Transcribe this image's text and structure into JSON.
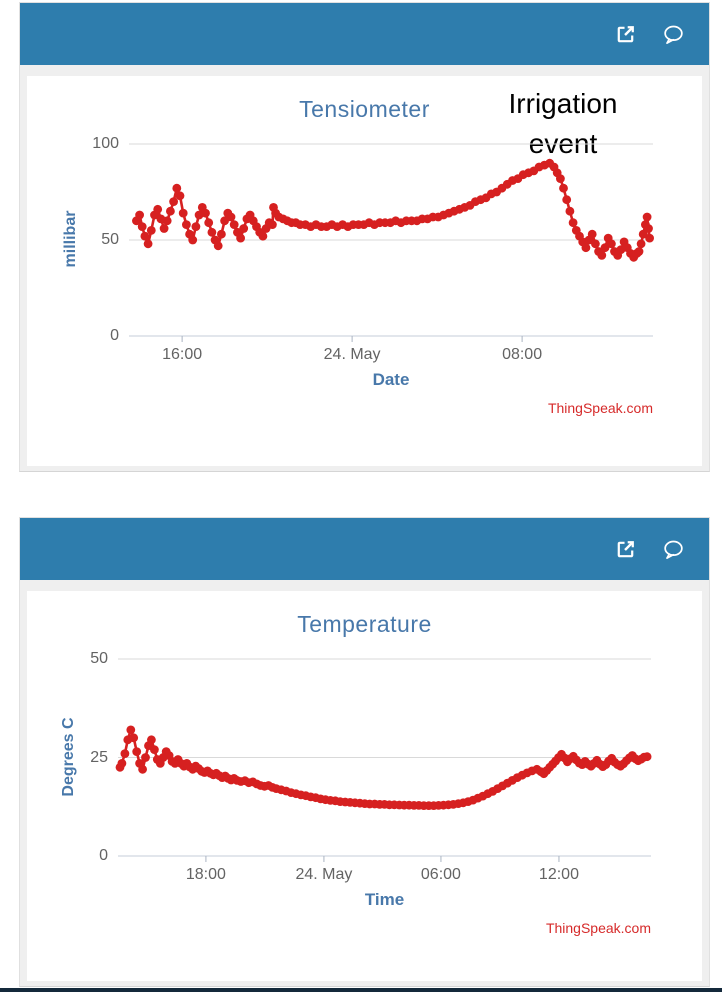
{
  "widgets": [
    {
      "id": "tensiometer",
      "header": {
        "icons": [
          "external-link-icon",
          "comment-icon"
        ]
      },
      "chart_data": {
        "type": "scatter",
        "title": "Tensiometer",
        "xlabel": "Date",
        "ylabel": "millibar",
        "credit": "ThingSpeak.com",
        "annotation": "Irrigation event",
        "color": "#d62020",
        "ylim": [
          0,
          100
        ],
        "yticks": [
          0,
          50,
          100
        ],
        "x_range": [
          0,
          24.66
        ],
        "x_unit": "hours from 23 May 13:30",
        "xticks": [
          {
            "t": 2.5,
            "label": "16:00"
          },
          {
            "t": 10.5,
            "label": "24. May"
          },
          {
            "t": 18.5,
            "label": "08:00"
          }
        ],
        "points": [
          [
            0.35,
            60
          ],
          [
            0.5,
            63
          ],
          [
            0.62,
            57
          ],
          [
            0.75,
            52
          ],
          [
            0.9,
            48
          ],
          [
            1.05,
            55
          ],
          [
            1.2,
            63
          ],
          [
            1.35,
            66
          ],
          [
            1.5,
            61
          ],
          [
            1.65,
            56
          ],
          [
            1.8,
            60
          ],
          [
            1.95,
            65
          ],
          [
            2.1,
            70
          ],
          [
            2.25,
            77
          ],
          [
            2.4,
            73
          ],
          [
            2.55,
            64
          ],
          [
            2.7,
            58
          ],
          [
            2.85,
            53
          ],
          [
            3.0,
            50
          ],
          [
            3.15,
            57
          ],
          [
            3.3,
            63
          ],
          [
            3.45,
            67
          ],
          [
            3.6,
            64
          ],
          [
            3.75,
            59
          ],
          [
            3.9,
            54
          ],
          [
            4.05,
            50
          ],
          [
            4.2,
            47
          ],
          [
            4.35,
            53
          ],
          [
            4.5,
            60
          ],
          [
            4.65,
            64
          ],
          [
            4.8,
            62
          ],
          [
            4.95,
            58
          ],
          [
            5.1,
            54
          ],
          [
            5.25,
            51
          ],
          [
            5.4,
            56
          ],
          [
            5.55,
            61
          ],
          [
            5.7,
            63
          ],
          [
            5.85,
            60
          ],
          [
            6.0,
            57
          ],
          [
            6.15,
            54
          ],
          [
            6.3,
            52
          ],
          [
            6.45,
            56
          ],
          [
            6.6,
            59
          ],
          [
            6.75,
            58
          ],
          [
            6.8,
            67
          ],
          [
            6.9,
            64
          ],
          [
            7.05,
            62
          ],
          [
            7.25,
            61
          ],
          [
            7.45,
            60
          ],
          [
            7.65,
            59
          ],
          [
            7.85,
            59
          ],
          [
            8.05,
            58
          ],
          [
            8.3,
            58
          ],
          [
            8.55,
            57
          ],
          [
            8.8,
            58
          ],
          [
            9.05,
            57
          ],
          [
            9.3,
            57
          ],
          [
            9.55,
            58
          ],
          [
            9.8,
            57
          ],
          [
            10.05,
            58
          ],
          [
            10.3,
            57
          ],
          [
            10.55,
            58
          ],
          [
            10.8,
            58
          ],
          [
            11.05,
            58
          ],
          [
            11.3,
            59
          ],
          [
            11.55,
            58
          ],
          [
            11.8,
            59
          ],
          [
            12.05,
            59
          ],
          [
            12.3,
            59
          ],
          [
            12.55,
            60
          ],
          [
            12.8,
            59
          ],
          [
            13.05,
            60
          ],
          [
            13.3,
            60
          ],
          [
            13.55,
            60
          ],
          [
            13.8,
            61
          ],
          [
            14.05,
            61
          ],
          [
            14.3,
            62
          ],
          [
            14.55,
            62
          ],
          [
            14.8,
            63
          ],
          [
            15.05,
            64
          ],
          [
            15.3,
            65
          ],
          [
            15.55,
            66
          ],
          [
            15.8,
            67
          ],
          [
            16.05,
            68
          ],
          [
            16.3,
            70
          ],
          [
            16.55,
            71
          ],
          [
            16.8,
            72
          ],
          [
            17.05,
            74
          ],
          [
            17.3,
            75
          ],
          [
            17.55,
            77
          ],
          [
            17.8,
            79
          ],
          [
            18.05,
            81
          ],
          [
            18.3,
            82
          ],
          [
            18.55,
            84
          ],
          [
            18.8,
            85
          ],
          [
            19.05,
            86
          ],
          [
            19.3,
            88
          ],
          [
            19.55,
            89
          ],
          [
            19.8,
            90
          ],
          [
            20.0,
            88
          ],
          [
            20.15,
            85
          ],
          [
            20.3,
            82
          ],
          [
            20.45,
            77
          ],
          [
            20.6,
            71
          ],
          [
            20.75,
            65
          ],
          [
            20.9,
            59
          ],
          [
            21.05,
            55
          ],
          [
            21.2,
            52
          ],
          [
            21.35,
            49
          ],
          [
            21.5,
            46
          ],
          [
            21.65,
            50
          ],
          [
            21.8,
            53
          ],
          [
            21.95,
            48
          ],
          [
            22.1,
            44
          ],
          [
            22.25,
            42
          ],
          [
            22.4,
            46
          ],
          [
            22.55,
            51
          ],
          [
            22.7,
            48
          ],
          [
            22.85,
            44
          ],
          [
            23.0,
            42
          ],
          [
            23.15,
            45
          ],
          [
            23.3,
            49
          ],
          [
            23.45,
            46
          ],
          [
            23.6,
            43
          ],
          [
            23.75,
            41
          ],
          [
            23.9,
            43
          ],
          [
            24.0,
            44
          ],
          [
            24.1,
            48
          ],
          [
            24.2,
            53
          ],
          [
            24.3,
            58
          ],
          [
            24.38,
            62
          ],
          [
            24.45,
            56
          ],
          [
            24.5,
            51
          ]
        ]
      }
    },
    {
      "id": "temperature",
      "header": {
        "icons": [
          "external-link-icon",
          "comment-icon"
        ]
      },
      "chart_data": {
        "type": "scatter",
        "title": "Temperature",
        "xlabel": "Time",
        "ylabel": "Degrees C",
        "credit": "ThingSpeak.com",
        "annotation": null,
        "color": "#d62020",
        "ylim": [
          0,
          50
        ],
        "yticks": [
          0,
          25,
          50
        ],
        "x_range": [
          0,
          27.1
        ],
        "x_unit": "hours from 23 May 13:30",
        "xticks": [
          {
            "t": 4.47,
            "label": "18:00"
          },
          {
            "t": 10.47,
            "label": "24. May"
          },
          {
            "t": 16.42,
            "label": "06:00"
          },
          {
            "t": 22.42,
            "label": "12:00"
          }
        ],
        "points": [
          [
            0.1,
            22.5
          ],
          [
            0.2,
            23.5
          ],
          [
            0.35,
            26
          ],
          [
            0.5,
            29.5
          ],
          [
            0.65,
            32
          ],
          [
            0.8,
            30
          ],
          [
            0.95,
            26.5
          ],
          [
            1.1,
            23.5
          ],
          [
            1.25,
            22
          ],
          [
            1.4,
            25
          ],
          [
            1.55,
            28
          ],
          [
            1.7,
            29.5
          ],
          [
            1.85,
            27
          ],
          [
            2.0,
            24.5
          ],
          [
            2.15,
            23.5
          ],
          [
            2.3,
            25
          ],
          [
            2.45,
            26.5
          ],
          [
            2.6,
            25.5
          ],
          [
            2.75,
            24
          ],
          [
            2.9,
            23.5
          ],
          [
            3.05,
            24.5
          ],
          [
            3.2,
            23.5
          ],
          [
            3.35,
            22.8
          ],
          [
            3.5,
            23.5
          ],
          [
            3.65,
            22.6
          ],
          [
            3.8,
            22.0
          ],
          [
            3.95,
            22.8
          ],
          [
            4.1,
            22.2
          ],
          [
            4.25,
            21.5
          ],
          [
            4.4,
            21.2
          ],
          [
            4.55,
            21.6
          ],
          [
            4.7,
            21.0
          ],
          [
            4.85,
            20.6
          ],
          [
            5.0,
            21.0
          ],
          [
            5.15,
            20.4
          ],
          [
            5.3,
            19.9
          ],
          [
            5.45,
            20.3
          ],
          [
            5.6,
            19.7
          ],
          [
            5.75,
            19.3
          ],
          [
            5.9,
            19.7
          ],
          [
            6.05,
            19.2
          ],
          [
            6.25,
            18.9
          ],
          [
            6.45,
            19.1
          ],
          [
            6.65,
            18.6
          ],
          [
            6.85,
            18.8
          ],
          [
            7.05,
            18.3
          ],
          [
            7.25,
            17.9
          ],
          [
            7.45,
            17.7
          ],
          [
            7.65,
            17.9
          ],
          [
            7.85,
            17.4
          ],
          [
            8.05,
            17.1
          ],
          [
            8.3,
            16.8
          ],
          [
            8.55,
            16.5
          ],
          [
            8.8,
            16.1
          ],
          [
            9.05,
            15.8
          ],
          [
            9.3,
            15.5
          ],
          [
            9.55,
            15.3
          ],
          [
            9.8,
            15.0
          ],
          [
            10.05,
            14.8
          ],
          [
            10.3,
            14.5
          ],
          [
            10.55,
            14.3
          ],
          [
            10.8,
            14.1
          ],
          [
            11.05,
            14.0
          ],
          [
            11.3,
            13.8
          ],
          [
            11.55,
            13.7
          ],
          [
            11.8,
            13.6
          ],
          [
            12.05,
            13.5
          ],
          [
            12.3,
            13.4
          ],
          [
            12.55,
            13.3
          ],
          [
            12.8,
            13.2
          ],
          [
            13.05,
            13.2
          ],
          [
            13.3,
            13.1
          ],
          [
            13.55,
            13.1
          ],
          [
            13.8,
            13.0
          ],
          [
            14.05,
            13.0
          ],
          [
            14.3,
            12.95
          ],
          [
            14.55,
            12.9
          ],
          [
            14.8,
            12.9
          ],
          [
            15.05,
            12.85
          ],
          [
            15.3,
            12.85
          ],
          [
            15.55,
            12.8
          ],
          [
            15.8,
            12.8
          ],
          [
            16.05,
            12.8
          ],
          [
            16.3,
            12.85
          ],
          [
            16.55,
            12.9
          ],
          [
            16.8,
            13.0
          ],
          [
            17.05,
            13.1
          ],
          [
            17.3,
            13.3
          ],
          [
            17.55,
            13.5
          ],
          [
            17.8,
            13.8
          ],
          [
            18.05,
            14.2
          ],
          [
            18.3,
            14.7
          ],
          [
            18.55,
            15.2
          ],
          [
            18.8,
            15.8
          ],
          [
            19.05,
            16.4
          ],
          [
            19.3,
            17.1
          ],
          [
            19.55,
            17.8
          ],
          [
            19.8,
            18.5
          ],
          [
            20.05,
            19.2
          ],
          [
            20.3,
            19.9
          ],
          [
            20.55,
            20.5
          ],
          [
            20.8,
            21.1
          ],
          [
            21.05,
            21.6
          ],
          [
            21.3,
            22.0
          ],
          [
            21.5,
            21.4
          ],
          [
            21.65,
            20.9
          ],
          [
            21.8,
            21.7
          ],
          [
            21.95,
            22.5
          ],
          [
            22.1,
            23.3
          ],
          [
            22.25,
            24.1
          ],
          [
            22.4,
            25.0
          ],
          [
            22.55,
            25.8
          ],
          [
            22.7,
            24.9
          ],
          [
            22.85,
            23.9
          ],
          [
            23.0,
            24.7
          ],
          [
            23.15,
            25.3
          ],
          [
            23.3,
            24.4
          ],
          [
            23.45,
            23.6
          ],
          [
            23.6,
            23.2
          ],
          [
            23.75,
            24.0
          ],
          [
            23.9,
            23.3
          ],
          [
            24.05,
            22.8
          ],
          [
            24.2,
            23.5
          ],
          [
            24.35,
            24.3
          ],
          [
            24.5,
            23.3
          ],
          [
            24.65,
            22.7
          ],
          [
            24.8,
            23.2
          ],
          [
            24.95,
            24.1
          ],
          [
            25.1,
            24.8
          ],
          [
            25.25,
            23.8
          ],
          [
            25.4,
            23.2
          ],
          [
            25.55,
            22.8
          ],
          [
            25.7,
            23.4
          ],
          [
            25.85,
            24.2
          ],
          [
            26.0,
            24.9
          ],
          [
            26.15,
            25.5
          ],
          [
            26.3,
            24.7
          ],
          [
            26.45,
            24.2
          ],
          [
            26.6,
            24.6
          ],
          [
            26.75,
            25.1
          ],
          [
            26.9,
            25.2
          ]
        ]
      }
    }
  ],
  "colors": {
    "header": "#2e7dad",
    "series": "#d62020",
    "axis_title": "#4878aa",
    "tick_label": "#636363",
    "credit": "#d62a2a"
  }
}
